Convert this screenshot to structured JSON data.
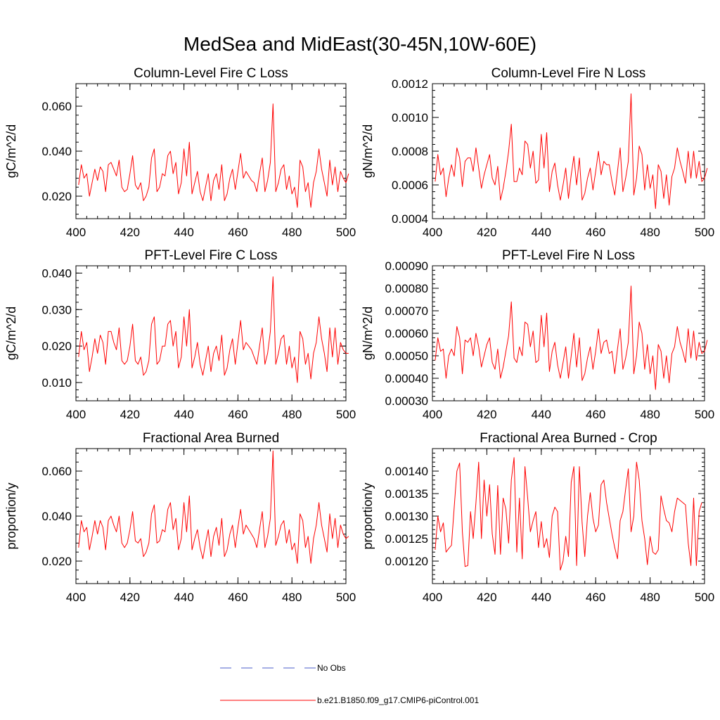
{
  "figure_title": "MedSea and MidEast(30-45N,10W-60E)",
  "legend": [
    {
      "label": "No Obs",
      "color": "#4a5cc8",
      "style": "dashed"
    },
    {
      "label": "b.e21.B1850.f09_g17.CMIP6-piControl.001",
      "color": "#ff0000",
      "style": "solid"
    }
  ],
  "chart_data": [
    {
      "type": "line",
      "title": "Column-Level Fire C Loss",
      "ylabel": "gC/m^2/d",
      "xlabel": "",
      "xlim": [
        400,
        500
      ],
      "ylim": [
        0.01,
        0.07
      ],
      "xticks": [
        400,
        420,
        440,
        460,
        480,
        500
      ],
      "xtick_labels": [
        "400",
        "420",
        "440",
        "460",
        "480",
        "500"
      ],
      "yticks": [
        0.02,
        0.04,
        0.06
      ],
      "ytick_labels": [
        "0.020",
        "0.040",
        "0.060"
      ],
      "x_start": 401,
      "series": [
        {
          "name": "b.e21.B1850.f09_g17.CMIP6-piControl.001",
          "color": "#ff0000",
          "values": [
            0.025,
            0.034,
            0.028,
            0.03,
            0.02,
            0.026,
            0.032,
            0.027,
            0.033,
            0.031,
            0.022,
            0.034,
            0.035,
            0.032,
            0.029,
            0.036,
            0.024,
            0.022,
            0.023,
            0.03,
            0.038,
            0.025,
            0.023,
            0.026,
            0.018,
            0.02,
            0.024,
            0.037,
            0.041,
            0.022,
            0.024,
            0.03,
            0.029,
            0.038,
            0.04,
            0.03,
            0.035,
            0.021,
            0.026,
            0.041,
            0.029,
            0.044,
            0.021,
            0.026,
            0.031,
            0.022,
            0.018,
            0.024,
            0.03,
            0.018,
            0.027,
            0.03,
            0.023,
            0.034,
            0.018,
            0.021,
            0.028,
            0.032,
            0.023,
            0.031,
            0.039,
            0.028,
            0.031,
            0.029,
            0.027,
            0.026,
            0.022,
            0.03,
            0.037,
            0.022,
            0.027,
            0.035,
            0.061,
            0.022,
            0.026,
            0.032,
            0.034,
            0.023,
            0.029,
            0.021,
            0.024,
            0.015,
            0.036,
            0.033,
            0.022,
            0.026,
            0.015,
            0.026,
            0.031,
            0.041,
            0.032,
            0.026,
            0.02,
            0.036,
            0.025,
            0.033,
            0.022,
            0.031,
            0.028,
            0.026,
            0.03
          ]
        }
      ]
    },
    {
      "type": "line",
      "title": "Column-Level Fire N Loss",
      "ylabel": "gN/m^2/d",
      "xlabel": "",
      "xlim": [
        400,
        500
      ],
      "ylim": [
        0.0004,
        0.0012
      ],
      "xticks": [
        400,
        420,
        440,
        460,
        480,
        500
      ],
      "xtick_labels": [
        "400",
        "420",
        "440",
        "460",
        "480",
        "500"
      ],
      "yticks": [
        0.0004,
        0.0006,
        0.0008,
        0.001,
        0.0012
      ],
      "ytick_labels": [
        "0.0004",
        "0.0006",
        "0.0008",
        "0.0010",
        "0.0012"
      ],
      "x_start": 401,
      "series": [
        {
          "name": "b.e21.B1850.f09_g17.CMIP6-piControl.001",
          "color": "#ff0000",
          "values": [
            0.00062,
            0.00078,
            0.00066,
            0.0007,
            0.00053,
            0.00064,
            0.00072,
            0.00065,
            0.00082,
            0.00076,
            0.00059,
            0.00074,
            0.00076,
            0.00076,
            0.00068,
            0.00082,
            0.0007,
            0.00058,
            0.00066,
            0.00072,
            0.00078,
            0.00064,
            0.0006,
            0.00071,
            0.00051,
            0.00058,
            0.00068,
            0.0008,
            0.00096,
            0.00062,
            0.00062,
            0.0007,
            0.00066,
            0.00086,
            0.00084,
            0.0007,
            0.0008,
            0.00061,
            0.00063,
            0.0009,
            0.0007,
            0.00091,
            0.00056,
            0.00068,
            0.00073,
            0.0006,
            0.00051,
            0.0006,
            0.0007,
            0.00052,
            0.00066,
            0.00077,
            0.0006,
            0.00076,
            0.00051,
            0.00055,
            0.00064,
            0.0007,
            0.00057,
            0.00068,
            0.0008,
            0.00066,
            0.00074,
            0.00072,
            0.00072,
            0.00062,
            0.00054,
            0.00068,
            0.00082,
            0.00056,
            0.00064,
            0.00074,
            0.00114,
            0.00054,
            0.00064,
            0.00083,
            0.00078,
            0.00057,
            0.00072,
            0.00058,
            0.00066,
            0.00046,
            0.00072,
            0.00068,
            0.00052,
            0.00066,
            0.00048,
            0.00065,
            0.0007,
            0.00082,
            0.00074,
            0.00068,
            0.00061,
            0.0008,
            0.00064,
            0.0008,
            0.00064,
            0.00074,
            0.00062,
            0.00064,
            0.0007
          ]
        }
      ]
    },
    {
      "type": "line",
      "title": "PFT-Level Fire C Loss",
      "ylabel": "gC/m^2/d",
      "xlabel": "",
      "xlim": [
        400,
        500
      ],
      "ylim": [
        0.005,
        0.042
      ],
      "xticks": [
        400,
        420,
        440,
        460,
        480,
        500
      ],
      "xtick_labels": [
        "400",
        "420",
        "440",
        "460",
        "480",
        "500"
      ],
      "yticks": [
        0.01,
        0.02,
        0.03,
        0.04
      ],
      "ytick_labels": [
        "0.010",
        "0.020",
        "0.030",
        "0.040"
      ],
      "x_start": 401,
      "series": [
        {
          "name": "b.e21.B1850.f09_g17.CMIP6-piControl.001",
          "color": "#ff0000",
          "values": [
            0.017,
            0.024,
            0.019,
            0.021,
            0.013,
            0.017,
            0.022,
            0.018,
            0.023,
            0.021,
            0.015,
            0.024,
            0.024,
            0.021,
            0.019,
            0.025,
            0.016,
            0.015,
            0.016,
            0.02,
            0.026,
            0.016,
            0.015,
            0.017,
            0.012,
            0.013,
            0.016,
            0.026,
            0.028,
            0.015,
            0.016,
            0.02,
            0.02,
            0.026,
            0.027,
            0.02,
            0.024,
            0.014,
            0.017,
            0.028,
            0.02,
            0.03,
            0.014,
            0.017,
            0.021,
            0.015,
            0.012,
            0.016,
            0.02,
            0.013,
            0.018,
            0.02,
            0.016,
            0.023,
            0.012,
            0.014,
            0.019,
            0.022,
            0.015,
            0.021,
            0.027,
            0.019,
            0.021,
            0.02,
            0.019,
            0.017,
            0.015,
            0.02,
            0.025,
            0.015,
            0.018,
            0.024,
            0.039,
            0.015,
            0.018,
            0.022,
            0.023,
            0.015,
            0.02,
            0.014,
            0.017,
            0.01,
            0.024,
            0.022,
            0.015,
            0.018,
            0.011,
            0.018,
            0.021,
            0.028,
            0.022,
            0.018,
            0.013,
            0.025,
            0.017,
            0.025,
            0.015,
            0.021,
            0.019,
            0.018,
            0.018
          ]
        }
      ]
    },
    {
      "type": "line",
      "title": "PFT-Level Fire N Loss",
      "ylabel": "gN/m^2/d",
      "xlabel": "",
      "xlim": [
        400,
        500
      ],
      "ylim": [
        0.0003,
        0.0009
      ],
      "xticks": [
        400,
        420,
        440,
        460,
        480,
        500
      ],
      "xtick_labels": [
        "400",
        "420",
        "440",
        "460",
        "480",
        "500"
      ],
      "yticks": [
        0.0003,
        0.0004,
        0.0005,
        0.0006,
        0.0007,
        0.0008,
        0.0009
      ],
      "ytick_labels": [
        "0.00030",
        "0.00040",
        "0.00050",
        "0.00060",
        "0.00070",
        "0.00080",
        "0.00090"
      ],
      "x_start": 401,
      "series": [
        {
          "name": "b.e21.B1850.f09_g17.CMIP6-piControl.001",
          "color": "#ff0000",
          "values": [
            0.00048,
            0.00058,
            0.00052,
            0.00053,
            0.0004,
            0.0005,
            0.00053,
            0.0005,
            0.00063,
            0.00058,
            0.00042,
            0.00057,
            0.00056,
            0.00058,
            0.0005,
            0.0006,
            0.00054,
            0.00045,
            0.0005,
            0.00055,
            0.00058,
            0.00047,
            0.00044,
            0.00053,
            0.0004,
            0.00045,
            0.00052,
            0.00059,
            0.00074,
            0.00049,
            0.00047,
            0.00054,
            0.0005,
            0.00065,
            0.00064,
            0.00054,
            0.00061,
            0.00047,
            0.00048,
            0.00068,
            0.00054,
            0.00069,
            0.00043,
            0.00052,
            0.00056,
            0.00046,
            0.0004,
            0.00047,
            0.00054,
            0.0004,
            0.0005,
            0.0006,
            0.00045,
            0.00058,
            0.00039,
            0.00042,
            0.00049,
            0.00054,
            0.00044,
            0.00052,
            0.00062,
            0.00051,
            0.00056,
            0.00057,
            0.00051,
            0.00052,
            0.00042,
            0.00053,
            0.00062,
            0.00044,
            0.00049,
            0.00056,
            0.00081,
            0.00042,
            0.0005,
            0.00065,
            0.0006,
            0.00044,
            0.00055,
            0.00042,
            0.0005,
            0.00035,
            0.00055,
            0.00052,
            0.0004,
            0.0005,
            0.00038,
            0.00051,
            0.00054,
            0.00063,
            0.00056,
            0.00052,
            0.00047,
            0.00062,
            0.00049,
            0.00061,
            0.00048,
            0.00056,
            0.00051,
            0.00052,
            0.00057
          ]
        }
      ]
    },
    {
      "type": "line",
      "title": "Fractional Area Burned",
      "ylabel": "proportion/y",
      "xlabel": "",
      "xlim": [
        400,
        500
      ],
      "ylim": [
        0.01,
        0.07
      ],
      "xticks": [
        400,
        420,
        440,
        460,
        480,
        500
      ],
      "xtick_labels": [
        "400",
        "420",
        "440",
        "460",
        "480",
        "500"
      ],
      "yticks": [
        0.02,
        0.04,
        0.06
      ],
      "ytick_labels": [
        "0.020",
        "0.040",
        "0.060"
      ],
      "x_start": 401,
      "series": [
        {
          "name": "b.e21.B1850.f09_g17.CMIP6-piControl.001",
          "color": "#ff0000",
          "values": [
            0.026,
            0.038,
            0.033,
            0.035,
            0.025,
            0.031,
            0.038,
            0.032,
            0.038,
            0.035,
            0.025,
            0.038,
            0.04,
            0.036,
            0.033,
            0.04,
            0.028,
            0.026,
            0.028,
            0.034,
            0.042,
            0.029,
            0.028,
            0.03,
            0.022,
            0.024,
            0.028,
            0.041,
            0.045,
            0.028,
            0.029,
            0.034,
            0.033,
            0.043,
            0.046,
            0.034,
            0.039,
            0.025,
            0.03,
            0.046,
            0.033,
            0.049,
            0.025,
            0.03,
            0.034,
            0.026,
            0.021,
            0.028,
            0.034,
            0.022,
            0.031,
            0.035,
            0.027,
            0.039,
            0.022,
            0.025,
            0.032,
            0.036,
            0.026,
            0.035,
            0.043,
            0.032,
            0.036,
            0.034,
            0.032,
            0.03,
            0.026,
            0.034,
            0.042,
            0.026,
            0.031,
            0.039,
            0.069,
            0.027,
            0.031,
            0.036,
            0.038,
            0.028,
            0.034,
            0.025,
            0.028,
            0.019,
            0.041,
            0.038,
            0.026,
            0.031,
            0.019,
            0.03,
            0.036,
            0.046,
            0.036,
            0.03,
            0.024,
            0.041,
            0.03,
            0.039,
            0.026,
            0.036,
            0.032,
            0.03,
            0.031
          ]
        }
      ]
    },
    {
      "type": "line",
      "title": "Fractional Area Burned - Crop",
      "ylabel": "proportion/y",
      "xlabel": "",
      "xlim": [
        400,
        500
      ],
      "ylim": [
        0.00115,
        0.00145
      ],
      "xticks": [
        400,
        420,
        440,
        460,
        480,
        500
      ],
      "xtick_labels": [
        "400",
        "420",
        "440",
        "460",
        "480",
        "500"
      ],
      "yticks": [
        0.0012,
        0.00125,
        0.0013,
        0.00135,
        0.0014
      ],
      "ytick_labels": [
        "0.00120",
        "0.00125",
        "0.00130",
        "0.00135",
        "0.00140"
      ],
      "x_start": 401,
      "series": [
        {
          "name": "b.e21.B1850.f09_g17.CMIP6-piControl.001",
          "color": "#ff0000",
          "values": [
            0.001225,
            0.0013,
            0.001265,
            0.001285,
            0.00122,
            0.001228,
            0.001235,
            0.00132,
            0.0014,
            0.001418,
            0.001265,
            0.001188,
            0.00119,
            0.00131,
            0.00125,
            0.00133,
            0.00142,
            0.00125,
            0.00138,
            0.0013,
            0.00137,
            0.00126,
            0.001215,
            0.001368,
            0.001215,
            0.00134,
            0.001315,
            0.00124,
            0.00138,
            0.00143,
            0.00122,
            0.00134,
            0.001205,
            0.00141,
            0.00134,
            0.001265,
            0.00129,
            0.00131,
            0.00123,
            0.001288,
            0.00123,
            0.00125,
            0.001208,
            0.0013,
            0.00132,
            0.00131,
            0.00118,
            0.0012,
            0.001255,
            0.00121,
            0.001375,
            0.00141,
            0.00119,
            0.00141,
            0.001285,
            0.00121,
            0.0013,
            0.001352,
            0.001295,
            0.001265,
            0.00128,
            0.00137,
            0.00138,
            0.00133,
            0.001295,
            0.00126,
            0.00123,
            0.001205,
            0.00129,
            0.00131,
            0.00136,
            0.001405,
            0.001265,
            0.0013,
            0.00142,
            0.00138,
            0.00129,
            0.00125,
            0.001192,
            0.001255,
            0.00122,
            0.001215,
            0.001225,
            0.001345,
            0.001315,
            0.00129,
            0.001285,
            0.001265,
            0.00131,
            0.00134,
            0.001335,
            0.00133,
            0.001325,
            0.00124,
            0.00119,
            0.00134,
            0.00119,
            0.00131,
            0.00133
          ]
        }
      ]
    }
  ]
}
